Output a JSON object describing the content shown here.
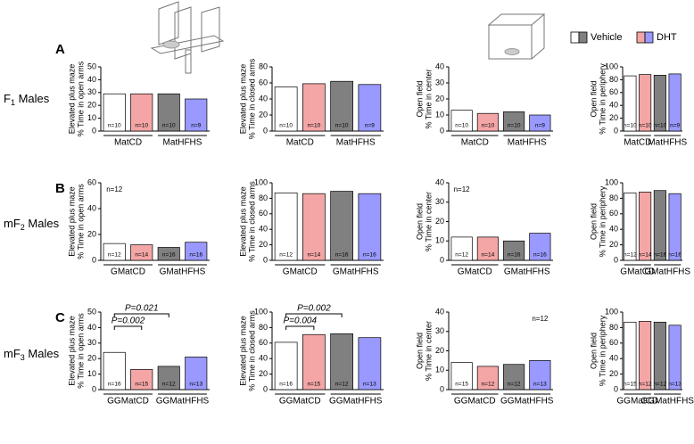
{
  "rows": [
    {
      "letter": "A",
      "label": "F",
      "sub": "1",
      "suffix": " Males"
    },
    {
      "letter": "B",
      "label": "mF",
      "sub": "2",
      "suffix": " Males"
    },
    {
      "letter": "C",
      "label": "mF",
      "sub": "3",
      "suffix": " Males"
    }
  ],
  "chart_data": [
    {
      "type": "bar",
      "ylabel_title": "Elevated plus maze",
      "ylabel": "% Time in open arms",
      "ylim": [
        0,
        50
      ],
      "yticks": [
        0,
        10,
        20,
        30,
        40,
        50
      ],
      "categories": [
        "MatCD",
        "MatHFHS"
      ],
      "series": [
        {
          "name": "Vehicle",
          "colors": [
            "#ffffff",
            "#808080"
          ],
          "values": [
            29,
            29
          ],
          "n_labels": [
            "n=10",
            "n=10"
          ]
        },
        {
          "name": "DHT",
          "colors": [
            "#f4a6a6",
            "#9999ff"
          ],
          "values": [
            29,
            25
          ],
          "n_labels": [
            "n=10",
            "n=9"
          ]
        }
      ]
    },
    {
      "type": "bar",
      "ylabel_title": "Elevated plus maze",
      "ylabel": "% Time in closed arms",
      "ylim": [
        0,
        80
      ],
      "yticks": [
        0,
        20,
        40,
        60,
        80
      ],
      "categories": [
        "MatCD",
        "MatHFHS"
      ],
      "series": [
        {
          "name": "Vehicle",
          "colors": [
            "#ffffff",
            "#808080"
          ],
          "values": [
            55,
            62
          ],
          "n_labels": [
            "n=10",
            "n=10"
          ]
        },
        {
          "name": "DHT",
          "colors": [
            "#f4a6a6",
            "#9999ff"
          ],
          "values": [
            59,
            58
          ],
          "n_labels": [
            "n=10",
            "n=9"
          ]
        }
      ]
    },
    {
      "type": "bar",
      "ylabel_title": "Open field",
      "ylabel": "% Time in center",
      "ylim": [
        0,
        40
      ],
      "yticks": [
        0,
        10,
        20,
        30,
        40
      ],
      "categories": [
        "MatCD",
        "MatHFHS"
      ],
      "series": [
        {
          "name": "Vehicle",
          "colors": [
            "#ffffff",
            "#808080"
          ],
          "values": [
            13,
            12
          ],
          "n_labels": [
            "n=10",
            "n=10"
          ]
        },
        {
          "name": "DHT",
          "colors": [
            "#f4a6a6",
            "#9999ff"
          ],
          "values": [
            11,
            10
          ],
          "n_labels": [
            "n=10",
            "n=9"
          ]
        }
      ]
    },
    {
      "type": "bar",
      "ylabel_title": "Open field",
      "ylabel": "% Time in periphery",
      "ylim": [
        0,
        100
      ],
      "yticks": [
        0,
        20,
        40,
        60,
        80,
        100
      ],
      "categories": [
        "MatCD",
        "MatHFHS"
      ],
      "series": [
        {
          "name": "Vehicle",
          "colors": [
            "#ffffff",
            "#808080"
          ],
          "values": [
            86,
            87
          ],
          "n_labels": [
            "n=10",
            "n=10"
          ]
        },
        {
          "name": "DHT",
          "colors": [
            "#f4a6a6",
            "#9999ff"
          ],
          "values": [
            88,
            89
          ],
          "n_labels": [
            "n=10",
            "n=9"
          ]
        }
      ]
    },
    {
      "type": "bar",
      "ylabel_title": "Elevated plus maze",
      "ylabel": "% Time in open arms",
      "ylim": [
        0,
        60
      ],
      "yticks": [
        0,
        20,
        40,
        60
      ],
      "categories": [
        "GMatCD",
        "GMatHFHS"
      ],
      "annotations": [
        {
          "text": "n=12"
        }
      ],
      "series": [
        {
          "name": "Vehicle",
          "colors": [
            "#ffffff",
            "#808080"
          ],
          "values": [
            13,
            10
          ],
          "n_labels": [
            "n=12",
            "n=16"
          ]
        },
        {
          "name": "DHT",
          "colors": [
            "#f4a6a6",
            "#9999ff"
          ],
          "values": [
            12,
            14
          ],
          "n_labels": [
            "n=14",
            "n=16"
          ]
        }
      ]
    },
    {
      "type": "bar",
      "ylabel_title": "Elevated plus maze",
      "ylabel": "% Time in closed arms",
      "ylim": [
        0,
        100
      ],
      "yticks": [
        0,
        20,
        40,
        60,
        80,
        100
      ],
      "categories": [
        "GMatCD",
        "GMatHFHS"
      ],
      "series": [
        {
          "name": "Vehicle",
          "colors": [
            "#ffffff",
            "#808080"
          ],
          "values": [
            87,
            89
          ],
          "n_labels": [
            "n=12",
            "n=16"
          ]
        },
        {
          "name": "DHT",
          "colors": [
            "#f4a6a6",
            "#9999ff"
          ],
          "values": [
            86,
            86
          ],
          "n_labels": [
            "n=14",
            "n=16"
          ]
        }
      ]
    },
    {
      "type": "bar",
      "ylabel_title": "Open field",
      "ylabel": "% Time in center",
      "ylim": [
        0,
        40
      ],
      "yticks": [
        0,
        10,
        20,
        30,
        40
      ],
      "categories": [
        "GMatCD",
        "GMatHFHS"
      ],
      "annotations": [
        {
          "text": "n=12"
        }
      ],
      "series": [
        {
          "name": "Vehicle",
          "colors": [
            "#ffffff",
            "#808080"
          ],
          "values": [
            12,
            10
          ],
          "n_labels": [
            "n=12",
            "n=16"
          ]
        },
        {
          "name": "DHT",
          "colors": [
            "#f4a6a6",
            "#9999ff"
          ],
          "values": [
            12,
            14
          ],
          "n_labels": [
            "n=14",
            "n=16"
          ]
        }
      ]
    },
    {
      "type": "bar",
      "ylabel_title": "Open field",
      "ylabel": "% Time in periphery",
      "ylim": [
        0,
        100
      ],
      "yticks": [
        0,
        20,
        40,
        60,
        80,
        100
      ],
      "categories": [
        "GMatCD",
        "GMatHFHS"
      ],
      "series": [
        {
          "name": "Vehicle",
          "colors": [
            "#ffffff",
            "#808080"
          ],
          "values": [
            87,
            90
          ],
          "n_labels": [
            "n=12",
            "n=16"
          ]
        },
        {
          "name": "DHT",
          "colors": [
            "#f4a6a6",
            "#9999ff"
          ],
          "values": [
            88,
            86
          ],
          "n_labels": [
            "n=14",
            "n=16"
          ]
        }
      ]
    },
    {
      "type": "bar",
      "ylabel_title": "Elevated plus maze",
      "ylabel": "% Time in open arms",
      "ylim": [
        0,
        50
      ],
      "yticks": [
        0,
        10,
        20,
        30,
        40,
        50
      ],
      "categories": [
        "GGMatCD",
        "GGMatHFHS"
      ],
      "brackets": [
        {
          "text": "P=0.021"
        },
        {
          "text": "P=0.002"
        }
      ],
      "series": [
        {
          "name": "Vehicle",
          "colors": [
            "#ffffff",
            "#808080"
          ],
          "values": [
            24,
            15
          ],
          "n_labels": [
            "n=16",
            "n=12"
          ]
        },
        {
          "name": "DHT",
          "colors": [
            "#f4a6a6",
            "#9999ff"
          ],
          "values": [
            13,
            21
          ],
          "n_labels": [
            "n=15",
            "n=13"
          ]
        }
      ]
    },
    {
      "type": "bar",
      "ylabel_title": "Elevated plus maze",
      "ylabel": "% Time in closed arms",
      "ylim": [
        0,
        100
      ],
      "yticks": [
        0,
        20,
        40,
        60,
        80,
        100
      ],
      "categories": [
        "GGMatCD",
        "GGMatHFHS"
      ],
      "brackets": [
        {
          "text": "P=0.002"
        },
        {
          "text": "P=0.004"
        }
      ],
      "series": [
        {
          "name": "Vehicle",
          "colors": [
            "#ffffff",
            "#808080"
          ],
          "values": [
            61,
            72
          ],
          "n_labels": [
            "n=16",
            "n=12"
          ]
        },
        {
          "name": "DHT",
          "colors": [
            "#f4a6a6",
            "#9999ff"
          ],
          "values": [
            71,
            67
          ],
          "n_labels": [
            "n=15",
            "n=13"
          ]
        }
      ]
    },
    {
      "type": "bar",
      "ylabel_title": "Open field",
      "ylabel": "% Time in center",
      "ylim": [
        0,
        40
      ],
      "yticks": [
        0,
        10,
        20,
        30,
        40
      ],
      "categories": [
        "GGMatCD",
        "GGMatHFHS"
      ],
      "annotations": [
        {
          "text": "n=12"
        }
      ],
      "series": [
        {
          "name": "Vehicle",
          "colors": [
            "#ffffff",
            "#808080"
          ],
          "values": [
            14,
            13
          ],
          "n_labels": [
            "n=15",
            "n=12"
          ]
        },
        {
          "name": "DHT",
          "colors": [
            "#f4a6a6",
            "#9999ff"
          ],
          "values": [
            12,
            15
          ],
          "n_labels": [
            "n=12",
            "n=13"
          ]
        }
      ]
    },
    {
      "type": "bar",
      "ylabel_title": "Open field",
      "ylabel": "% Time in periphery",
      "ylim": [
        0,
        100
      ],
      "yticks": [
        0,
        20,
        40,
        60,
        80,
        100
      ],
      "categories": [
        "GGMatCD",
        "GGMatHFHS"
      ],
      "series": [
        {
          "name": "Vehicle",
          "colors": [
            "#ffffff",
            "#808080"
          ],
          "values": [
            87,
            87
          ],
          "n_labels": [
            "n=15",
            "n=12"
          ]
        },
        {
          "name": "DHT",
          "colors": [
            "#f4a6a6",
            "#9999ff"
          ],
          "values": [
            88,
            83
          ],
          "n_labels": [
            "n=12",
            "n=13"
          ]
        }
      ]
    }
  ]
}
